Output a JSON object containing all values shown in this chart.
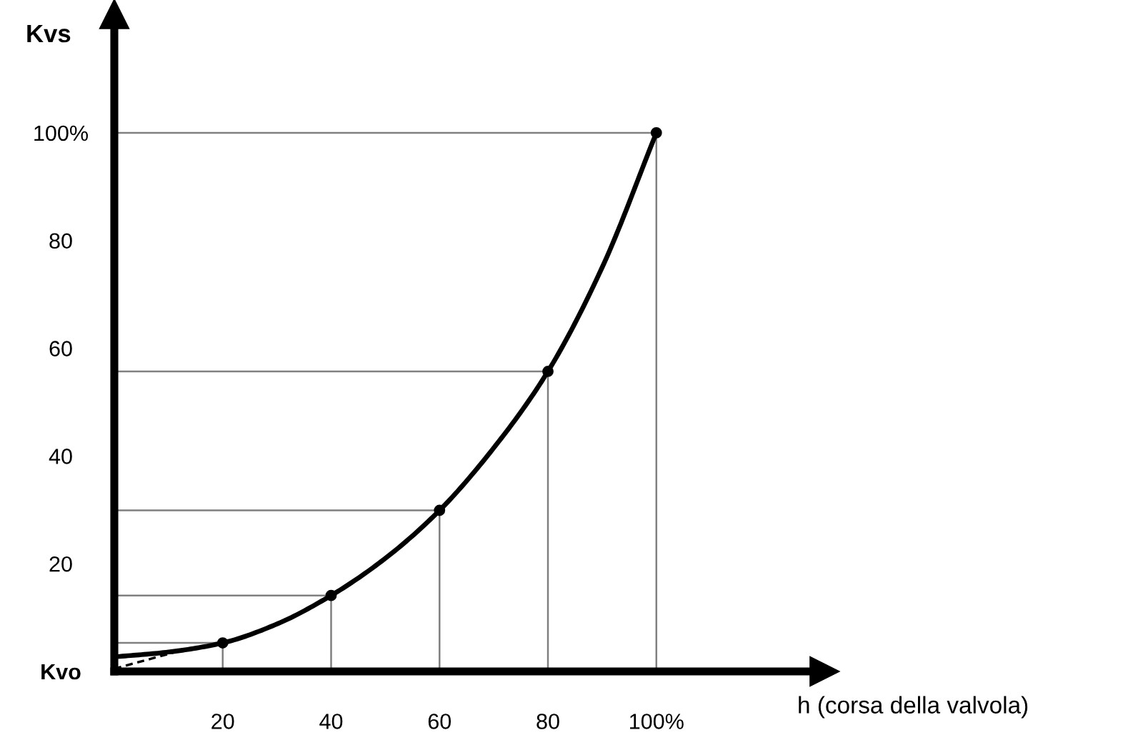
{
  "chart_data": {
    "type": "line",
    "ylabel": "Kvs",
    "xlabel": "h (corsa della valvola)",
    "xlim": [
      0,
      131
    ],
    "ylim": [
      0,
      122
    ],
    "xticks": [
      20,
      40,
      60,
      80,
      {
        "value": 100,
        "label": "100%"
      }
    ],
    "yticks": [
      {
        "value": 0,
        "label": "Kvo"
      },
      20,
      40,
      60,
      80,
      {
        "value": 100,
        "label": "100%"
      }
    ],
    "grid": false,
    "legend": false,
    "series": [
      {
        "color": "#808080",
        "x": [
          0,
          20,
          20
        ],
        "values": [
          5.3,
          5.3,
          0
        ]
      },
      {
        "color": "#808080",
        "x": [
          0,
          40,
          40
        ],
        "values": [
          14.1,
          14.1,
          0
        ]
      },
      {
        "color": "#808080",
        "x": [
          0,
          60,
          60
        ],
        "values": [
          29.9,
          29.9,
          0
        ]
      },
      {
        "color": "#808080",
        "x": [
          0,
          80,
          80
        ],
        "values": [
          55.7,
          55.7,
          0
        ]
      },
      {
        "color": "#808080",
        "x": [
          0,
          100,
          100
        ],
        "values": [
          100,
          100,
          0
        ]
      },
      {
        "color": "#000000",
        "line_style": "dashed",
        "x": [
          0,
          12
        ],
        "values": [
          0.5,
          3.8
        ]
      },
      {
        "color": "#000000",
        "x": [
          0,
          10,
          20,
          30,
          40,
          50,
          60,
          70,
          80,
          90,
          100
        ],
        "values": [
          2.7,
          3.6,
          5.3,
          8.8,
          14.1,
          21,
          29.9,
          41.5,
          55.7,
          75,
          100
        ]
      },
      {
        "type": "scatter",
        "color": "#000000",
        "marker": "circle",
        "x": [
          20,
          40,
          60,
          80,
          100
        ],
        "values": [
          5.3,
          14.1,
          29.9,
          55.7,
          100
        ]
      }
    ]
  }
}
